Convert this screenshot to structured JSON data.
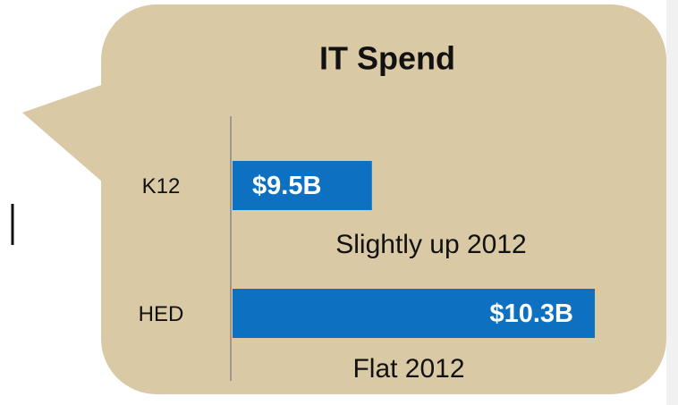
{
  "chart_data": {
    "type": "barh",
    "title": "IT Spend",
    "categories": [
      "K12",
      "HED"
    ],
    "values": [
      9.5,
      10.3
    ],
    "value_labels": [
      "$9.5B",
      "$10.3B"
    ],
    "annotations": [
      "Slightly up 2012",
      "Flat 2012"
    ],
    "color": "#0e70c0",
    "xlim": [
      9,
      10.3
    ]
  }
}
